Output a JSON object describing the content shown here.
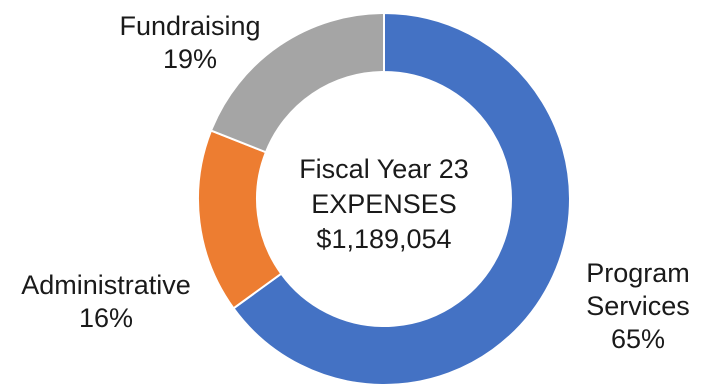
{
  "chart_data": {
    "type": "pie",
    "donut": true,
    "center_title": [
      "Fiscal Year 23",
      "EXPENSES",
      "$1,189,054"
    ],
    "slices": [
      {
        "name_lines": [
          "Program",
          "Services"
        ],
        "pct_label": "65%",
        "value": 65,
        "color": "#4472C4"
      },
      {
        "name_lines": [
          "Administrative"
        ],
        "pct_label": "16%",
        "value": 16,
        "color": "#ED7D31"
      },
      {
        "name_lines": [
          "Fundraising"
        ],
        "pct_label": "19%",
        "value": 19,
        "color": "#A5A5A5"
      }
    ]
  }
}
